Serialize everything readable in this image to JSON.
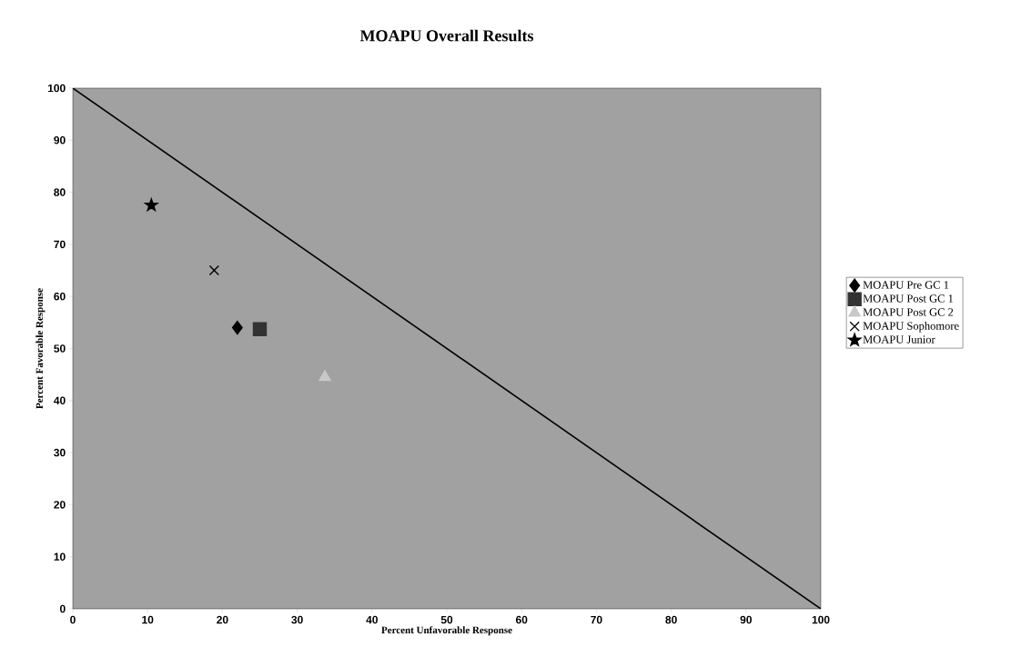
{
  "chart_data": {
    "type": "scatter",
    "title": "MOAPU Overall Results",
    "xlabel": "Percent Unfavorable Response",
    "ylabel": "Percent Favorable Response",
    "xlim": [
      0,
      100
    ],
    "ylim": [
      0,
      100
    ],
    "xticks": [
      0,
      10,
      20,
      30,
      40,
      50,
      60,
      70,
      80,
      90,
      100
    ],
    "yticks": [
      0,
      10,
      20,
      30,
      40,
      50,
      60,
      70,
      80,
      90,
      100
    ],
    "grid": false,
    "legend": "right",
    "series": [
      {
        "name": "MOAPU Pre GC 1",
        "color": "#000000",
        "marker": "diamond",
        "x": [
          22
        ],
        "values": [
          54
        ]
      },
      {
        "name": "MOAPU Post GC 1",
        "color": "#333333",
        "marker": "square",
        "x": [
          25
        ],
        "values": [
          53.7
        ]
      },
      {
        "name": "MOAPU Post GC 2",
        "color": "#c8c8c8",
        "marker": "triangle",
        "x": [
          33.7
        ],
        "values": [
          44.5
        ]
      },
      {
        "name": "MOAPU Sophomore",
        "color": "#000000",
        "marker": "cross",
        "x": [
          18.9
        ],
        "values": [
          65
        ]
      },
      {
        "name": "MOAPU Junior",
        "color": "#000000",
        "marker": "star",
        "x": [
          10.5
        ],
        "values": [
          77.5
        ]
      },
      {
        "type": "line",
        "color": "#000000",
        "marker": "none",
        "line_style": "solid",
        "x": [
          0,
          100
        ],
        "values": [
          100,
          0
        ]
      }
    ]
  }
}
